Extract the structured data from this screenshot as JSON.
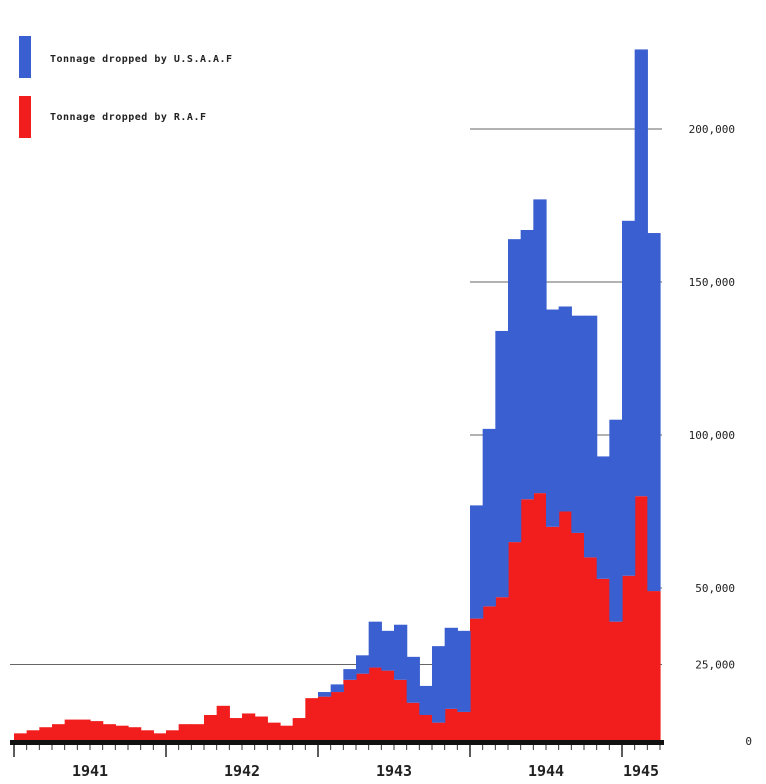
{
  "chart_data": {
    "type": "area",
    "title": "",
    "xlabel": "",
    "ylabel": "",
    "ylim": [
      0,
      240000
    ],
    "legend_position": "top-left",
    "colors": {
      "usaaf": "#3a5fd0",
      "raf": "#f21d1d",
      "axis": "#111111"
    },
    "legend": [
      {
        "key": "usaaf",
        "label": "Tonnage dropped by U.S.A.A.F"
      },
      {
        "key": "raf",
        "label": "Tonnage dropped by R.A.F"
      }
    ],
    "y_ticks": [
      {
        "value": 0,
        "label": "0"
      },
      {
        "value": 25000,
        "label": "25,000"
      },
      {
        "value": 50000,
        "label": "50,000"
      },
      {
        "value": 100000,
        "label": "100,000"
      },
      {
        "value": 150000,
        "label": "150,000"
      },
      {
        "value": 200000,
        "label": "200,000"
      }
    ],
    "years": [
      "1941",
      "1942",
      "1943",
      "1944",
      "1945"
    ],
    "series": [
      {
        "name": "Tonnage dropped by R.A.F",
        "key": "raf",
        "values": [
          2500,
          3500,
          4500,
          5500,
          7000,
          7000,
          6500,
          5500,
          5000,
          4500,
          3500,
          2500,
          3500,
          5500,
          5500,
          8500,
          11500,
          7500,
          9000,
          8000,
          6000,
          5000,
          7500,
          14000,
          14500,
          16000,
          20000,
          22000,
          24000,
          23000,
          20000,
          12500,
          8500,
          6000,
          10500,
          9500,
          40000,
          44000,
          47000,
          65000,
          79000,
          81000,
          70000,
          75000,
          68000,
          60000,
          53000,
          39000,
          54000,
          80000,
          49000
        ]
      },
      {
        "name": "Tonnage dropped by U.S.A.A.F",
        "key": "usaaf",
        "values": [
          0,
          0,
          0,
          0,
          0,
          0,
          0,
          0,
          0,
          0,
          0,
          0,
          0,
          0,
          0,
          0,
          0,
          0,
          0,
          0,
          0,
          0,
          0,
          0,
          1500,
          2500,
          3500,
          6000,
          15000,
          13000,
          18000,
          15000,
          9500,
          25000,
          26500,
          26500,
          37000,
          58000,
          87000,
          99000,
          88000,
          96000,
          71000,
          67000,
          71000,
          79000,
          40000,
          66000,
          116000,
          146000,
          117000
        ]
      }
    ]
  }
}
